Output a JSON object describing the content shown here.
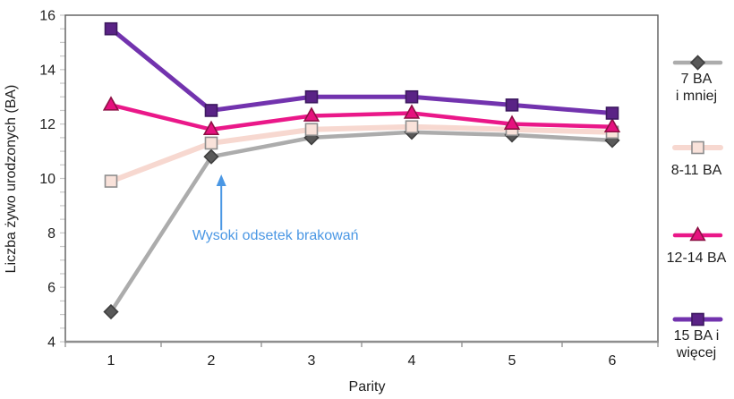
{
  "chart_data": {
    "type": "line",
    "title": "",
    "xlabel": "Parity",
    "ylabel": "Liczba żywo urodzonych (BA)",
    "categories": [
      "1",
      "2",
      "3",
      "4",
      "5",
      "6"
    ],
    "ylim": [
      4,
      16
    ],
    "yticks": [
      4,
      6,
      8,
      10,
      12,
      14,
      16
    ],
    "y_minor_step": 0.5,
    "grid": false,
    "legend_position": "right-outside",
    "series": [
      {
        "name": "7 BA i mniej",
        "legend_lines": [
          "7 BA",
          "i mniej"
        ],
        "marker": "diamond",
        "color": "#ACACAC",
        "marker_fill": "#595959",
        "marker_stroke": "#3F3F3F",
        "values": [
          5.1,
          10.8,
          11.5,
          11.7,
          11.6,
          11.4
        ]
      },
      {
        "name": "8-11 BA",
        "legend_lines": [
          "8-11 BA"
        ],
        "marker": "square",
        "color": "#F7D8D0",
        "marker_fill": "#F9E2DA",
        "marker_stroke": "#8E8E8E",
        "values": [
          9.9,
          11.3,
          11.8,
          11.9,
          11.8,
          11.7
        ]
      },
      {
        "name": "12-14 BA",
        "legend_lines": [
          "12-14 BA"
        ],
        "marker": "triangle",
        "color": "#EA1889",
        "marker_fill": "#E6117F",
        "marker_stroke": "#8C1144",
        "values": [
          12.7,
          11.8,
          12.3,
          12.4,
          12.0,
          11.9
        ]
      },
      {
        "name": "15 BA i więcej",
        "legend_lines": [
          "15 BA i",
          "więcej"
        ],
        "marker": "square",
        "color": "#7233AE",
        "marker_fill": "#5A2386",
        "marker_stroke": "#3D1960",
        "values": [
          15.5,
          12.5,
          13.0,
          13.0,
          12.7,
          12.4
        ]
      }
    ],
    "annotation": {
      "text": "Wysoki odsetek brakowań",
      "color": "#4A97E4",
      "arrow": {
        "x": 2.1,
        "y_from": 8.1,
        "y_to": 10.15
      },
      "text_pos": {
        "x": 2.64,
        "y": 7.75
      }
    },
    "axis_colors": {
      "frame": "#5A5A5A",
      "x_axis": "#8F8F8F",
      "minor_tick": "#C9C9C9",
      "tick_text": "#1F1F1F"
    }
  }
}
